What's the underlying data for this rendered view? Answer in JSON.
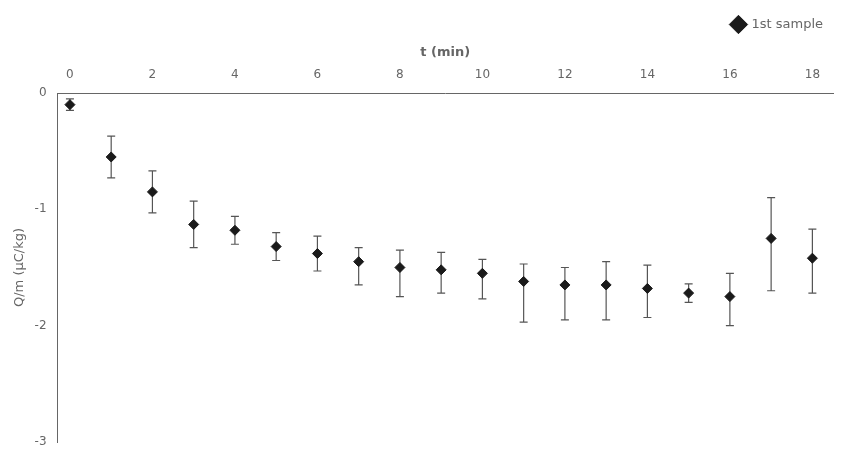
{
  "chart_data": {
    "type": "scatter",
    "xlabel": "t (min)",
    "ylabel": "Q/m (μC/kg)",
    "x": [
      0,
      1,
      2,
      3,
      4,
      5,
      6,
      7,
      8,
      9,
      10,
      11,
      12,
      13,
      14,
      15,
      16,
      17,
      18
    ],
    "series": [
      {
        "name": "1st sample",
        "color": "#1a1a1a",
        "marker": "diamond",
        "values": [
          -0.1,
          -0.55,
          -0.85,
          -1.13,
          -1.18,
          -1.32,
          -1.38,
          -1.45,
          -1.5,
          -1.52,
          -1.55,
          -1.62,
          -1.65,
          -1.65,
          -1.68,
          -1.72,
          -1.75,
          -1.25,
          -1.42
        ],
        "error_lower": [
          0.05,
          0.18,
          0.18,
          0.2,
          0.12,
          0.12,
          0.15,
          0.2,
          0.25,
          0.2,
          0.22,
          0.35,
          0.3,
          0.3,
          0.25,
          0.08,
          0.25,
          0.45,
          0.3
        ],
        "error_upper": [
          0.05,
          0.18,
          0.18,
          0.2,
          0.12,
          0.12,
          0.15,
          0.12,
          0.15,
          0.15,
          0.12,
          0.15,
          0.15,
          0.2,
          0.2,
          0.08,
          0.2,
          0.35,
          0.25
        ],
        "error_color": "#555555"
      }
    ],
    "xlim": [
      -0.3,
      18.5
    ],
    "ylim": [
      -3.0,
      0.0
    ],
    "xticks": [
      0,
      2,
      4,
      6,
      8,
      10,
      12,
      14,
      16,
      18
    ],
    "yticks": [
      0,
      -1,
      -2,
      -3
    ],
    "legend": "upper right",
    "grid": false
  }
}
